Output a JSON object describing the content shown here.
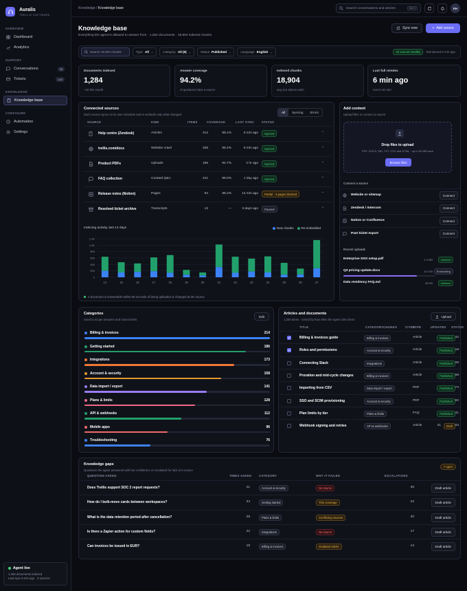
{
  "app": {
    "name": "Auralis",
    "subtitle": "TRELLIS SOFTWARE"
  },
  "nav": {
    "overview_label": "OVERVIEW",
    "overview": [
      {
        "label": "Dashboard"
      },
      {
        "label": "Analytics"
      }
    ],
    "support_label": "SUPPORT",
    "support": [
      {
        "label": "Conversations",
        "count": "18"
      },
      {
        "label": "Tickets",
        "count": "142"
      }
    ],
    "kb_label": "KNOWLEDGE",
    "kb": [
      {
        "label": "Knowledge base"
      }
    ],
    "configure_label": "CONFIGURE",
    "configure": [
      {
        "label": "Automation"
      },
      {
        "label": "Settings"
      }
    ]
  },
  "agent": {
    "title": "Agent live",
    "line1": "1,284 documents indexed",
    "line2": "Last sync 6 min ago · 3 sources"
  },
  "topbar": {
    "crumb_root": "Knowledge",
    "crumb_sep": " / ",
    "crumb_current": "Knowledge base",
    "search_placeholder": "Search conversations and articles",
    "shortcut": "Ctrl K",
    "avatar": "RH"
  },
  "header": {
    "title": "Knowledge base",
    "subtitle": "Everything the agent is allowed to answer from · 1,284 documents · 18,904 indexed chunks",
    "sync_label": "Sync now",
    "add_label": "Add source"
  },
  "filters": {
    "search_placeholder": "Search 18,904 chunks",
    "type_label": "Type",
    "type_value": "All",
    "category_label": "Category",
    "category_value": "All (9)",
    "status_label": "Status",
    "status_value": "Published",
    "language_label": "Language",
    "language_value": "English",
    "healthy": "All sources healthy",
    "reindexed": "Reindexed 6 min ago"
  },
  "stats": [
    {
      "label": "Documents indexed",
      "value": "1,284",
      "sub": "+42 this month"
    },
    {
      "label": "Answer coverage",
      "value": "94.2%",
      "sub": "of questions have a source"
    },
    {
      "label": "Indexed chunks",
      "value": "18,904",
      "sub": "avg 412 tokens each"
    },
    {
      "label": "Last full reindex",
      "value": "6 min ago",
      "sub": "next in 54 min"
    }
  ],
  "sources": {
    "title": "Connected sources",
    "subtitle": "Each source syncs on its own schedule and re-embeds only what changed",
    "tabs": [
      "All",
      "Syncing",
      "Errors"
    ],
    "columns": {
      "source": "SOURCE",
      "kind": "KIND",
      "items": "ITEMS",
      "coverage": "COVERAGE",
      "last_sync": "LAST SYNC",
      "status": "STATUS"
    },
    "rows": [
      {
        "name": "Help centre (Zendesk)",
        "kind": "Articles",
        "items": "412",
        "coverage": "98.1%",
        "last_sync": "6 min ago",
        "status": "Synced",
        "tone": "green",
        "icon": "book-icon"
      },
      {
        "name": "trellis.com/docs",
        "kind": "Website crawl",
        "items": "338",
        "coverage": "96.4%",
        "last_sync": "6 min ago",
        "status": "Synced",
        "tone": "green",
        "icon": "globe-icon"
      },
      {
        "name": "Product PDFs",
        "kind": "Uploads",
        "items": "186",
        "coverage": "92.7%",
        "last_sync": "2 hr ago",
        "status": "Synced",
        "tone": "green",
        "icon": "document-icon"
      },
      {
        "name": "FAQ collection",
        "kind": "Curated Q&A",
        "items": "241",
        "coverage": "99.0%",
        "last_sync": "1 day ago",
        "status": "Synced",
        "tone": "green",
        "icon": "chat-icon"
      },
      {
        "name": "Release notes (Notion)",
        "kind": "Pages",
        "items": "94",
        "coverage": "88.2%",
        "last_sync": "14 min ago",
        "status": "Partial · 3 pages blocked",
        "tone": "amber",
        "icon": "notion-icon"
      },
      {
        "name": "Resolved ticket archive",
        "kind": "Transcripts",
        "items": "13",
        "coverage": "—",
        "last_sync": "3 days ago",
        "status": "Paused",
        "tone": "gray",
        "icon": "archive-icon"
      }
    ]
  },
  "chart_data": {
    "type": "bar",
    "title": "Indexing activity, last 14 days",
    "categories": [
      "14",
      "15",
      "16",
      "17",
      "18",
      "19",
      "20",
      "21",
      "22",
      "23",
      "24",
      "25",
      "26",
      "27"
    ],
    "series": [
      {
        "name": "New chunks",
        "color": "#3b82f6",
        "values": [
          200,
          150,
          170,
          190,
          140,
          80,
          60,
          320,
          140,
          180,
          150,
          80,
          90,
          280
        ]
      },
      {
        "name": "Re-embedded",
        "color": "#22a06b",
        "values": [
          440,
          320,
          260,
          430,
          550,
          150,
          90,
          700,
          500,
          400,
          500,
          370,
          180,
          880
        ]
      }
    ],
    "ylim": [
      0,
      1200
    ],
    "yticks": [
      "0",
      "200",
      "400",
      "600",
      "800",
      "1.0K",
      "1.2K"
    ],
    "stacked": true,
    "note": "A document is answerable within 90 seconds of being uploaded or changed at the source."
  },
  "add_content": {
    "title": "Add content",
    "subtitle": "Upload files or connect a source",
    "drop_title": "Drop files to upload",
    "drop_sub": "PDF, DOCX, MD, TXT, CSV and HTML · up to 50 MB each",
    "browse": "Browse files",
    "connect_label": "Connect a source",
    "connect": [
      {
        "name": "Website or sitemap",
        "button": "Connect",
        "icon": "globe-icon"
      },
      {
        "name": "Zendesk / Intercom",
        "button": "Connect",
        "icon": "document-icon"
      },
      {
        "name": "Notion or Confluence",
        "button": "Connect",
        "icon": "notion-icon"
      },
      {
        "name": "Past ticket export",
        "button": "Connect",
        "icon": "chat-icon"
      }
    ],
    "recent_label": "Recent uploads",
    "uploads": [
      {
        "name": "Enterprise SSO setup.pdf",
        "size": "2.4 MB",
        "status": "Indexed",
        "tone": "green",
        "progress": null
      },
      {
        "name": "Q3 pricing update.docx",
        "size": "412 KB",
        "status": "Embedding",
        "tone": "gray",
        "progress": 0.8
      },
      {
        "name": "Data residency FAQ.md",
        "size": "38 KB",
        "status": "Indexed",
        "tone": "green",
        "progress": null
      }
    ]
  },
  "categories": {
    "title": "Categories",
    "subtitle": "Used to scope answers and route tickets",
    "edit": "Edit",
    "items": [
      {
        "name": "Billing & invoices",
        "count": "214",
        "color": "#3b82f6",
        "value": 214
      },
      {
        "name": "Getting started",
        "count": "186",
        "color": "#22a06b",
        "value": 186
      },
      {
        "name": "Integrations",
        "count": "173",
        "color": "#f07834",
        "value": 173
      },
      {
        "name": "Account & security",
        "count": "158",
        "color": "#e39b2c",
        "value": 158
      },
      {
        "name": "Data import / export",
        "count": "141",
        "color": "#9b7cf5",
        "value": 141
      },
      {
        "name": "Plans & limits",
        "count": "128",
        "color": "#f06a86",
        "value": 128
      },
      {
        "name": "API & webhooks",
        "count": "112",
        "color": "#22a06b",
        "value": 112
      },
      {
        "name": "Mobile apps",
        "count": "96",
        "color": "#f06a6a",
        "value": 96
      },
      {
        "name": "Troubleshooting",
        "count": "76",
        "color": "#3b82f6",
        "value": 76
      }
    ],
    "max": 214
  },
  "articles": {
    "title": "Articles and documents",
    "subtitle": "1,284 items · sorted by how often the agent cites them",
    "upload": "Upload",
    "columns": {
      "title": "TITLE",
      "category": "CATEGORY",
      "type": "TYPE",
      "chunks": "CHUNKS",
      "cited": "CITED",
      "updated": "UPDATED",
      "status": "STATUS"
    },
    "rows": [
      {
        "title": "Billing & invoices guide",
        "category": "Billing & invoices",
        "type": "Article",
        "chunks": "38",
        "cited": "1,842",
        "updated": "4 days ago",
        "status": "Published",
        "tone": "green",
        "checked": true
      },
      {
        "title": "Roles and permissions",
        "category": "Account & security",
        "type": "Article",
        "chunks": "24",
        "cited": "1,318",
        "updated": "3 weeks ago",
        "status": "Published",
        "tone": "green",
        "checked": true
      },
      {
        "title": "Connecting Slack",
        "category": "Integrations",
        "type": "Article",
        "chunks": "16",
        "cited": "1,106",
        "updated": "1 week ago",
        "status": "Published",
        "tone": "green",
        "checked": false
      },
      {
        "title": "Proration and mid-cycle changes",
        "category": "Billing & invoices",
        "type": "Article",
        "chunks": "12",
        "cited": "968",
        "updated": "2 months ago",
        "status": "Published",
        "tone": "green",
        "checked": false
      },
      {
        "title": "Importing from CSV",
        "category": "Data import / export",
        "type": "PDF",
        "chunks": "44",
        "cited": "874",
        "updated": "5 days ago",
        "status": "Published",
        "tone": "green",
        "checked": false
      },
      {
        "title": "SSO and SCIM provisioning",
        "category": "Account & security",
        "type": "PDF",
        "chunks": "61",
        "cited": "792",
        "updated": "2 days ago",
        "status": "Published",
        "tone": "green",
        "checked": false
      },
      {
        "title": "Plan limits by tier",
        "category": "Plans & limits",
        "type": "FAQ",
        "chunks": "9",
        "cited": "741",
        "updated": "1 day ago",
        "status": "Published",
        "tone": "green",
        "checked": false
      },
      {
        "title": "Webhook signing and retries",
        "category": "API & webhooks",
        "type": "Article",
        "chunks": "21",
        "cited": "603",
        "updated": "6 hours ago",
        "status": "Draft",
        "tone": "amber",
        "checked": false
      }
    ]
  },
  "gaps": {
    "title": "Knowledge gaps",
    "subtitle": "Questions the agent answered with low confidence or escalated for lack of a source",
    "badge": "7 open",
    "columns": {
      "question": "QUESTION ASKED",
      "times": "TIMES ASKED",
      "category": "CATEGORY",
      "why": "WHY IT FAILED",
      "escalations": "ESCALATIONS"
    },
    "rows": [
      {
        "q": "Does Trellis support SOC 2 report requests?",
        "times": "41",
        "category": "Account & security",
        "why": "No source",
        "tone": "red",
        "esc": "30",
        "action": "Draft article"
      },
      {
        "q": "How do I bulk-move cards between workspaces?",
        "times": "34",
        "category": "Getting started",
        "why": "Thin coverage",
        "tone": "amber",
        "esc": "22",
        "action": "Draft article"
      },
      {
        "q": "What is the data retention period after cancellation?",
        "times": "28",
        "category": "Plans & limits",
        "why": "Conflicting sources",
        "tone": "amber",
        "esc": "20",
        "action": "Draft article"
      },
      {
        "q": "Is there a Zapier action for custom fields?",
        "times": "22",
        "category": "Integrations",
        "why": "No source",
        "tone": "red",
        "esc": "17",
        "action": "Draft article"
      },
      {
        "q": "Can invoices be issued in EUR?",
        "times": "19",
        "category": "Billing & invoices",
        "why": "Outdated article",
        "tone": "amber",
        "esc": "14",
        "action": "Draft article"
      }
    ]
  }
}
